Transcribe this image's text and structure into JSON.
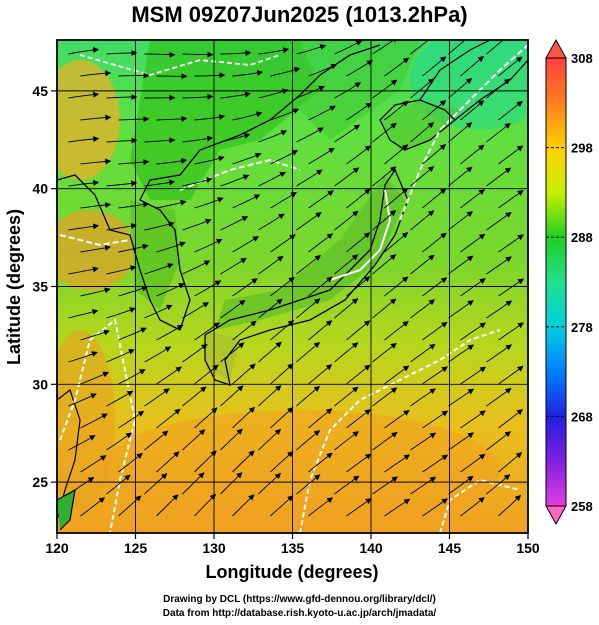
{
  "title": "MSM 09Z07Jun2025 (1013.2hPa)",
  "map": {
    "xlabel": "Longitude (degrees)",
    "ylabel": "Latitude  (degrees)",
    "lon_range": [
      120,
      150
    ],
    "lat_range": [
      22.4,
      47.6
    ],
    "lon_ticks": [
      120,
      125,
      130,
      135,
      140,
      145,
      150
    ],
    "lat_ticks": [
      25,
      30,
      35,
      40,
      45
    ]
  },
  "colorbar": {
    "range": [
      258,
      308
    ],
    "labels": [
      308,
      298,
      288,
      278,
      268,
      258
    ],
    "accent_low": "#ff66cc",
    "accent_high": "#ff5544"
  },
  "credits": {
    "line1": "Drawing by DCL (https://www.gfd-dennou.org/library/dcl/)",
    "line2": "Data from http://database.rish.kyoto-u.ac.jp/arch/jmadata/"
  }
}
